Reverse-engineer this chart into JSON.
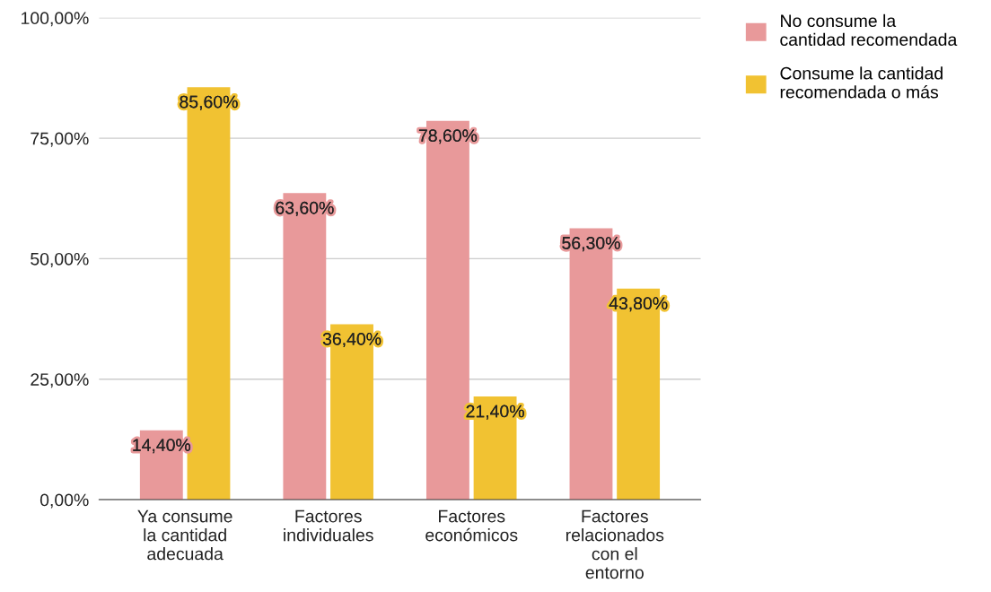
{
  "chart_data": {
    "type": "bar",
    "categories": [
      "Ya consume\nla cantidad\nadecuada",
      "Factores\nindividuales",
      "Factores\neconómicos",
      "Factores\nrelacionados\ncon el\nentorno"
    ],
    "series": [
      {
        "name": "No consume la\ncantidad recomendada",
        "color": "#e8999a",
        "values": [
          14.4,
          63.6,
          78.6,
          56.3
        ],
        "value_labels": [
          "14,40%",
          "63,60%",
          "78,60%",
          "56,30%"
        ]
      },
      {
        "name": "Consume la cantidad\nrecomendada o más",
        "color": "#f1c232",
        "values": [
          85.6,
          36.4,
          21.4,
          43.8
        ],
        "value_labels": [
          "85,60%",
          "36,40%",
          "21,40%",
          "43,80%"
        ]
      }
    ],
    "ylim": [
      0,
      100
    ],
    "yticks": [
      {
        "value": 0,
        "label": "0,00%"
      },
      {
        "value": 25,
        "label": "25,00%"
      },
      {
        "value": 50,
        "label": "50,00%"
      },
      {
        "value": 75,
        "label": "75,00%"
      },
      {
        "value": 100,
        "label": "100,00%"
      }
    ],
    "grid": "y",
    "legend": "top right"
  }
}
